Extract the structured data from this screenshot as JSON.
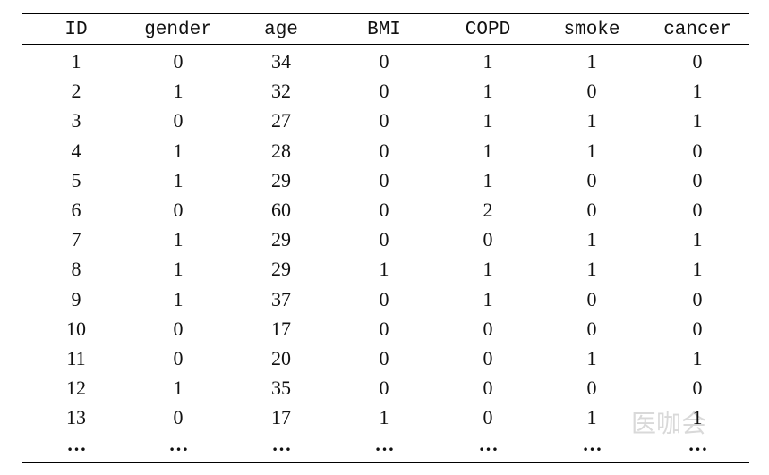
{
  "table": {
    "header": [
      "ID",
      "gender",
      "age",
      "BMI",
      "COPD",
      "smoke",
      "cancer"
    ],
    "rows": [
      [
        1,
        0,
        34,
        0,
        1,
        1,
        0
      ],
      [
        2,
        1,
        32,
        0,
        1,
        0,
        1
      ],
      [
        3,
        0,
        27,
        0,
        1,
        1,
        1
      ],
      [
        4,
        1,
        28,
        0,
        1,
        1,
        0
      ],
      [
        5,
        1,
        29,
        0,
        1,
        0,
        0
      ],
      [
        6,
        0,
        60,
        0,
        2,
        0,
        0
      ],
      [
        7,
        1,
        29,
        0,
        0,
        1,
        1
      ],
      [
        8,
        1,
        29,
        1,
        1,
        1,
        1
      ],
      [
        9,
        1,
        37,
        0,
        1,
        0,
        0
      ],
      [
        10,
        0,
        17,
        0,
        0,
        0,
        0
      ],
      [
        11,
        0,
        20,
        0,
        0,
        1,
        1
      ],
      [
        12,
        1,
        35,
        0,
        0,
        0,
        0
      ],
      [
        13,
        0,
        17,
        1,
        0,
        1,
        1
      ]
    ],
    "ellipsis_row": [
      "…",
      "…",
      "…",
      "…",
      "…",
      "…",
      "…"
    ]
  },
  "watermark": "医咖会"
}
